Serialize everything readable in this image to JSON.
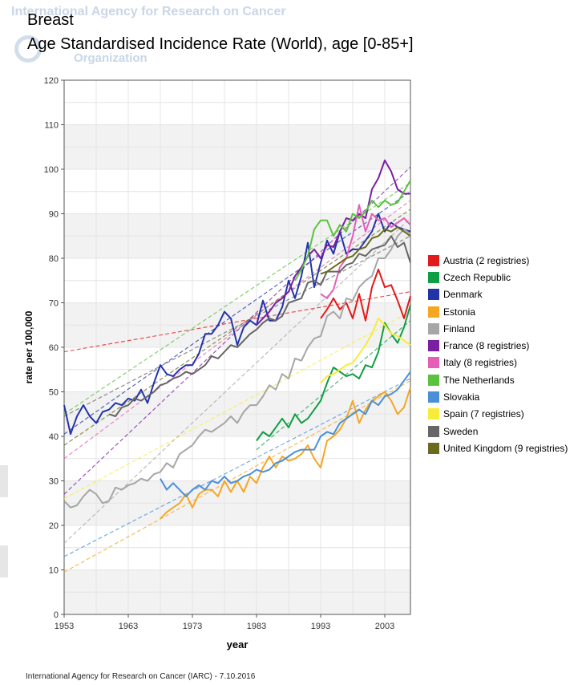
{
  "watermark": {
    "line1": "International Agency for Research on Cancer",
    "line2": "Organization"
  },
  "header": {
    "title": "Breast",
    "subtitle": "Age Standardised Incidence Rate (World), age [0-85+]"
  },
  "footer": {
    "credit": "International Agency for Research on Cancer (IARC) - 7.10.2016"
  },
  "chart_data": {
    "type": "line",
    "title": "Breast",
    "subtitle": "Age Standardised Incidence Rate (World), age [0-85+]",
    "xlabel": "year",
    "ylabel": "rate per 100,000",
    "xlim": [
      1953,
      2007
    ],
    "ylim": [
      0,
      120
    ],
    "x_ticks": [
      1953,
      1963,
      1973,
      1983,
      1993,
      2003
    ],
    "y_ticks": [
      0,
      10,
      20,
      30,
      40,
      50,
      60,
      70,
      80,
      90,
      100,
      110,
      120
    ],
    "grid": true,
    "legend_position": "right",
    "series": [
      {
        "name": "Austria (2 registries)",
        "color": "#e31a1c",
        "x": [
          1993,
          1994,
          1995,
          1996,
          1997,
          1998,
          1999,
          2000,
          2001,
          2002,
          2003,
          2004,
          2005,
          2006,
          2007
        ],
        "y": [
          66.5,
          68.5,
          71,
          68.5,
          70,
          66.5,
          72,
          66,
          73.5,
          77.5,
          73.5,
          74,
          70.5,
          66.5,
          71.5
        ],
        "trend": [
          [
            1953,
            59
          ],
          [
            2007,
            72.5
          ]
        ]
      },
      {
        "name": "Czech Republic",
        "color": "#0f9e43",
        "x": [
          1983,
          1984,
          1985,
          1986,
          1987,
          1988,
          1989,
          1990,
          1991,
          1992,
          1993,
          1994,
          1995,
          1996,
          1997,
          1998,
          1999,
          2000,
          2001,
          2002,
          2003,
          2004,
          2005,
          2006,
          2007
        ],
        "y": [
          39,
          41,
          40,
          42,
          44,
          42,
          45,
          43,
          44,
          46,
          48,
          52,
          55.5,
          54.5,
          53.5,
          54,
          53,
          56,
          55.5,
          59,
          65.5,
          63,
          61,
          64.5,
          69.5
        ],
        "trend": [
          [
            1983,
            37
          ],
          [
            2007,
            66
          ]
        ]
      },
      {
        "name": "Denmark",
        "color": "#2233aa",
        "x": [
          1953,
          1954,
          1955,
          1956,
          1957,
          1958,
          1959,
          1960,
          1961,
          1962,
          1963,
          1964,
          1965,
          1966,
          1967,
          1968,
          1969,
          1970,
          1971,
          1972,
          1973,
          1974,
          1975,
          1976,
          1977,
          1978,
          1979,
          1980,
          1981,
          1982,
          1983,
          1984,
          1985,
          1986,
          1987,
          1988,
          1989,
          1990,
          1991,
          1992,
          1993,
          1994,
          1995,
          1996,
          1997,
          1998,
          1999,
          2000,
          2001,
          2002,
          2003,
          2004,
          2005,
          2006,
          2007
        ],
        "y": [
          47,
          40.5,
          44.5,
          47,
          44.5,
          43,
          45.5,
          46,
          47.5,
          47,
          48.5,
          48,
          50.5,
          47.5,
          52,
          56,
          54,
          53.5,
          55,
          56,
          56,
          58.5,
          63,
          63,
          65,
          68,
          66.5,
          60.5,
          64.5,
          66,
          65,
          70.5,
          66,
          66,
          69,
          75,
          71,
          76,
          83.5,
          73.5,
          79,
          84,
          81,
          86,
          81,
          82,
          82,
          84,
          86,
          90,
          86,
          88,
          87,
          86.5,
          86
        ],
        "trend": [
          [
            1953,
            40.5
          ],
          [
            2007,
            95
          ]
        ]
      },
      {
        "name": "Estonia",
        "color": "#f5a623",
        "x": [
          1968,
          1969,
          1970,
          1971,
          1972,
          1973,
          1974,
          1975,
          1976,
          1977,
          1978,
          1979,
          1980,
          1981,
          1982,
          1983,
          1984,
          1985,
          1986,
          1987,
          1988,
          1989,
          1990,
          1991,
          1992,
          1993,
          1994,
          1995,
          1996,
          1997,
          1998,
          1999,
          2000,
          2001,
          2002,
          2003,
          2004,
          2005,
          2006,
          2007
        ],
        "y": [
          21.5,
          23,
          24,
          25,
          27,
          24,
          27,
          28,
          28,
          26.5,
          30,
          27.5,
          30,
          27.5,
          31,
          29.5,
          33,
          35.5,
          33,
          35.5,
          34.5,
          35,
          36,
          38,
          35,
          33,
          39,
          40,
          41.5,
          44,
          48,
          43,
          46,
          48,
          49,
          50,
          48,
          45,
          46.5,
          51
        ],
        "trend": [
          [
            1953,
            9.5
          ],
          [
            2007,
            52.5
          ]
        ]
      },
      {
        "name": "Finland",
        "color": "#a6a6a6",
        "x": [
          1953,
          1954,
          1955,
          1956,
          1957,
          1958,
          1959,
          1960,
          1961,
          1962,
          1963,
          1964,
          1965,
          1966,
          1967,
          1968,
          1969,
          1970,
          1971,
          1972,
          1973,
          1974,
          1975,
          1976,
          1977,
          1978,
          1979,
          1980,
          1981,
          1982,
          1983,
          1984,
          1985,
          1986,
          1987,
          1988,
          1989,
          1990,
          1991,
          1992,
          1993,
          1994,
          1995,
          1996,
          1997,
          1998,
          1999,
          2000,
          2001,
          2002,
          2003,
          2004,
          2005,
          2006,
          2007
        ],
        "y": [
          25.5,
          24,
          24.5,
          26.5,
          28,
          27,
          25,
          25.5,
          28.5,
          28,
          29,
          29.5,
          30.5,
          30,
          31.5,
          32,
          34,
          33,
          36,
          37,
          38,
          40,
          41.5,
          41,
          42,
          43,
          44.5,
          43,
          45.5,
          47,
          47,
          49,
          51.5,
          50.5,
          54,
          53,
          57.5,
          57,
          60,
          62,
          62.5,
          67,
          68,
          66.5,
          71,
          70.5,
          73.5,
          75,
          76,
          80,
          80,
          82,
          85,
          86.5,
          85.5
        ],
        "trend": [
          [
            1953,
            16
          ],
          [
            2007,
            89
          ]
        ]
      },
      {
        "name": "France (8 registries)",
        "color": "#7b1fa2",
        "x": [
          1983,
          1984,
          1985,
          1986,
          1987,
          1988,
          1989,
          1990,
          1991,
          1992,
          1993,
          1994,
          1995,
          1996,
          1997,
          1998,
          1999,
          2000,
          2001,
          2002,
          2003,
          2004,
          2005,
          2006,
          2007
        ],
        "y": [
          65,
          66.5,
          68,
          70,
          71,
          72.5,
          76,
          78,
          80.5,
          82,
          80,
          83,
          82.5,
          86,
          89,
          88.5,
          90,
          89,
          95.5,
          98,
          102,
          99.5,
          95.5,
          94.5,
          94.5
        ],
        "trend": [
          [
            1953,
            27
          ],
          [
            2007,
            100.5
          ]
        ]
      },
      {
        "name": "Italy (8 registries)",
        "color": "#e55fb8",
        "x": [
          1993,
          1994,
          1995,
          1996,
          1997,
          1998,
          1999,
          2000,
          2001,
          2002,
          2003,
          2004,
          2005,
          2006,
          2007
        ],
        "y": [
          72,
          71,
          73,
          78,
          80,
          85,
          92,
          86,
          90,
          88.5,
          89,
          87,
          88,
          89,
          87.5
        ],
        "trend": [
          [
            1953,
            35
          ],
          [
            2007,
            93
          ]
        ]
      },
      {
        "name": "The Netherlands",
        "color": "#5bc23e",
        "x": [
          1989,
          1990,
          1991,
          1992,
          1993,
          1994,
          1995,
          1996,
          1997,
          1998,
          1999,
          2000,
          2001,
          2002,
          2003,
          2004,
          2005,
          2006,
          2007
        ],
        "y": [
          75,
          77.5,
          80.5,
          86.5,
          88.5,
          88.5,
          85,
          87.5,
          86,
          90,
          89,
          90.5,
          93,
          91.5,
          93,
          92,
          92.5,
          95,
          97.5
        ],
        "trend": [
          [
            1953,
            45
          ],
          [
            2007,
            97
          ]
        ]
      },
      {
        "name": "Slovakia",
        "color": "#4a90d9",
        "x": [
          1968,
          1969,
          1970,
          1971,
          1972,
          1973,
          1974,
          1975,
          1976,
          1977,
          1978,
          1979,
          1980,
          1981,
          1982,
          1983,
          1984,
          1985,
          1986,
          1987,
          1988,
          1989,
          1990,
          1991,
          1992,
          1993,
          1994,
          1995,
          1996,
          1997,
          1998,
          1999,
          2000,
          2001,
          2002,
          2003,
          2004,
          2005,
          2006,
          2007
        ],
        "y": [
          30.5,
          28,
          29.5,
          28,
          26.5,
          28,
          29,
          28,
          30,
          29.5,
          31,
          29.5,
          30,
          31,
          31.5,
          32.5,
          32,
          32.5,
          34,
          34.5,
          35.5,
          36.5,
          37,
          37,
          37,
          40,
          41,
          40.5,
          43,
          44,
          45,
          46,
          45,
          48,
          47,
          49,
          49.5,
          50.5,
          52.5,
          54.5
        ],
        "trend": [
          [
            1953,
            13
          ],
          [
            2007,
            53
          ]
        ]
      },
      {
        "name": "Spain (7 registries)",
        "color": "#f8ec3a",
        "x": [
          1993,
          1994,
          1995,
          1996,
          1997,
          1998,
          1999,
          2000,
          2001,
          2002,
          2003,
          2004,
          2005,
          2006,
          2007
        ],
        "y": [
          52,
          53.5,
          54,
          55,
          56,
          56.5,
          58.5,
          60.5,
          63,
          66.5,
          65,
          63,
          62.5,
          61.5,
          60.5
        ],
        "trend": [
          [
            1953,
            26
          ],
          [
            2007,
            68
          ]
        ]
      },
      {
        "name": "Sweden",
        "color": "#666666",
        "x": [
          1960,
          1961,
          1962,
          1963,
          1964,
          1965,
          1966,
          1967,
          1968,
          1969,
          1970,
          1971,
          1972,
          1973,
          1974,
          1975,
          1976,
          1977,
          1978,
          1979,
          1980,
          1981,
          1982,
          1983,
          1984,
          1985,
          1986,
          1987,
          1988,
          1989,
          1990,
          1991,
          1992,
          1993,
          1994,
          1995,
          1996,
          1997,
          1998,
          1999,
          2000,
          2001,
          2002,
          2003,
          2004,
          2005,
          2006,
          2007
        ],
        "y": [
          45,
          44.5,
          46.5,
          47,
          48.5,
          48,
          49,
          50,
          51.5,
          52,
          53,
          53.5,
          54.5,
          54,
          55,
          56,
          58,
          57.5,
          59,
          60.5,
          60,
          61.5,
          63,
          64,
          65.5,
          66.5,
          66,
          67,
          70,
          70.5,
          71,
          74.5,
          75,
          74,
          77,
          77,
          77,
          78.5,
          79,
          81,
          80.5,
          82,
          82.5,
          83,
          85,
          82.5,
          83.5,
          79
        ],
        "trend": [
          [
            1953,
            44.5
          ],
          [
            2007,
            85
          ]
        ]
      },
      {
        "name": "United Kingdom (9 registries)",
        "color": "#6b6b1e",
        "x": [
          1993,
          1994,
          1995,
          1996,
          1997,
          1998,
          1999,
          2000,
          2001,
          2002,
          2003,
          2004,
          2005,
          2006,
          2007
        ],
        "y": [
          76.5,
          77,
          78,
          79,
          80,
          80.5,
          82,
          82.5,
          84.5,
          85,
          86.5,
          86,
          87,
          86,
          85
        ],
        "trend": [
          [
            1953,
            38
          ],
          [
            2007,
            91
          ]
        ]
      }
    ]
  }
}
